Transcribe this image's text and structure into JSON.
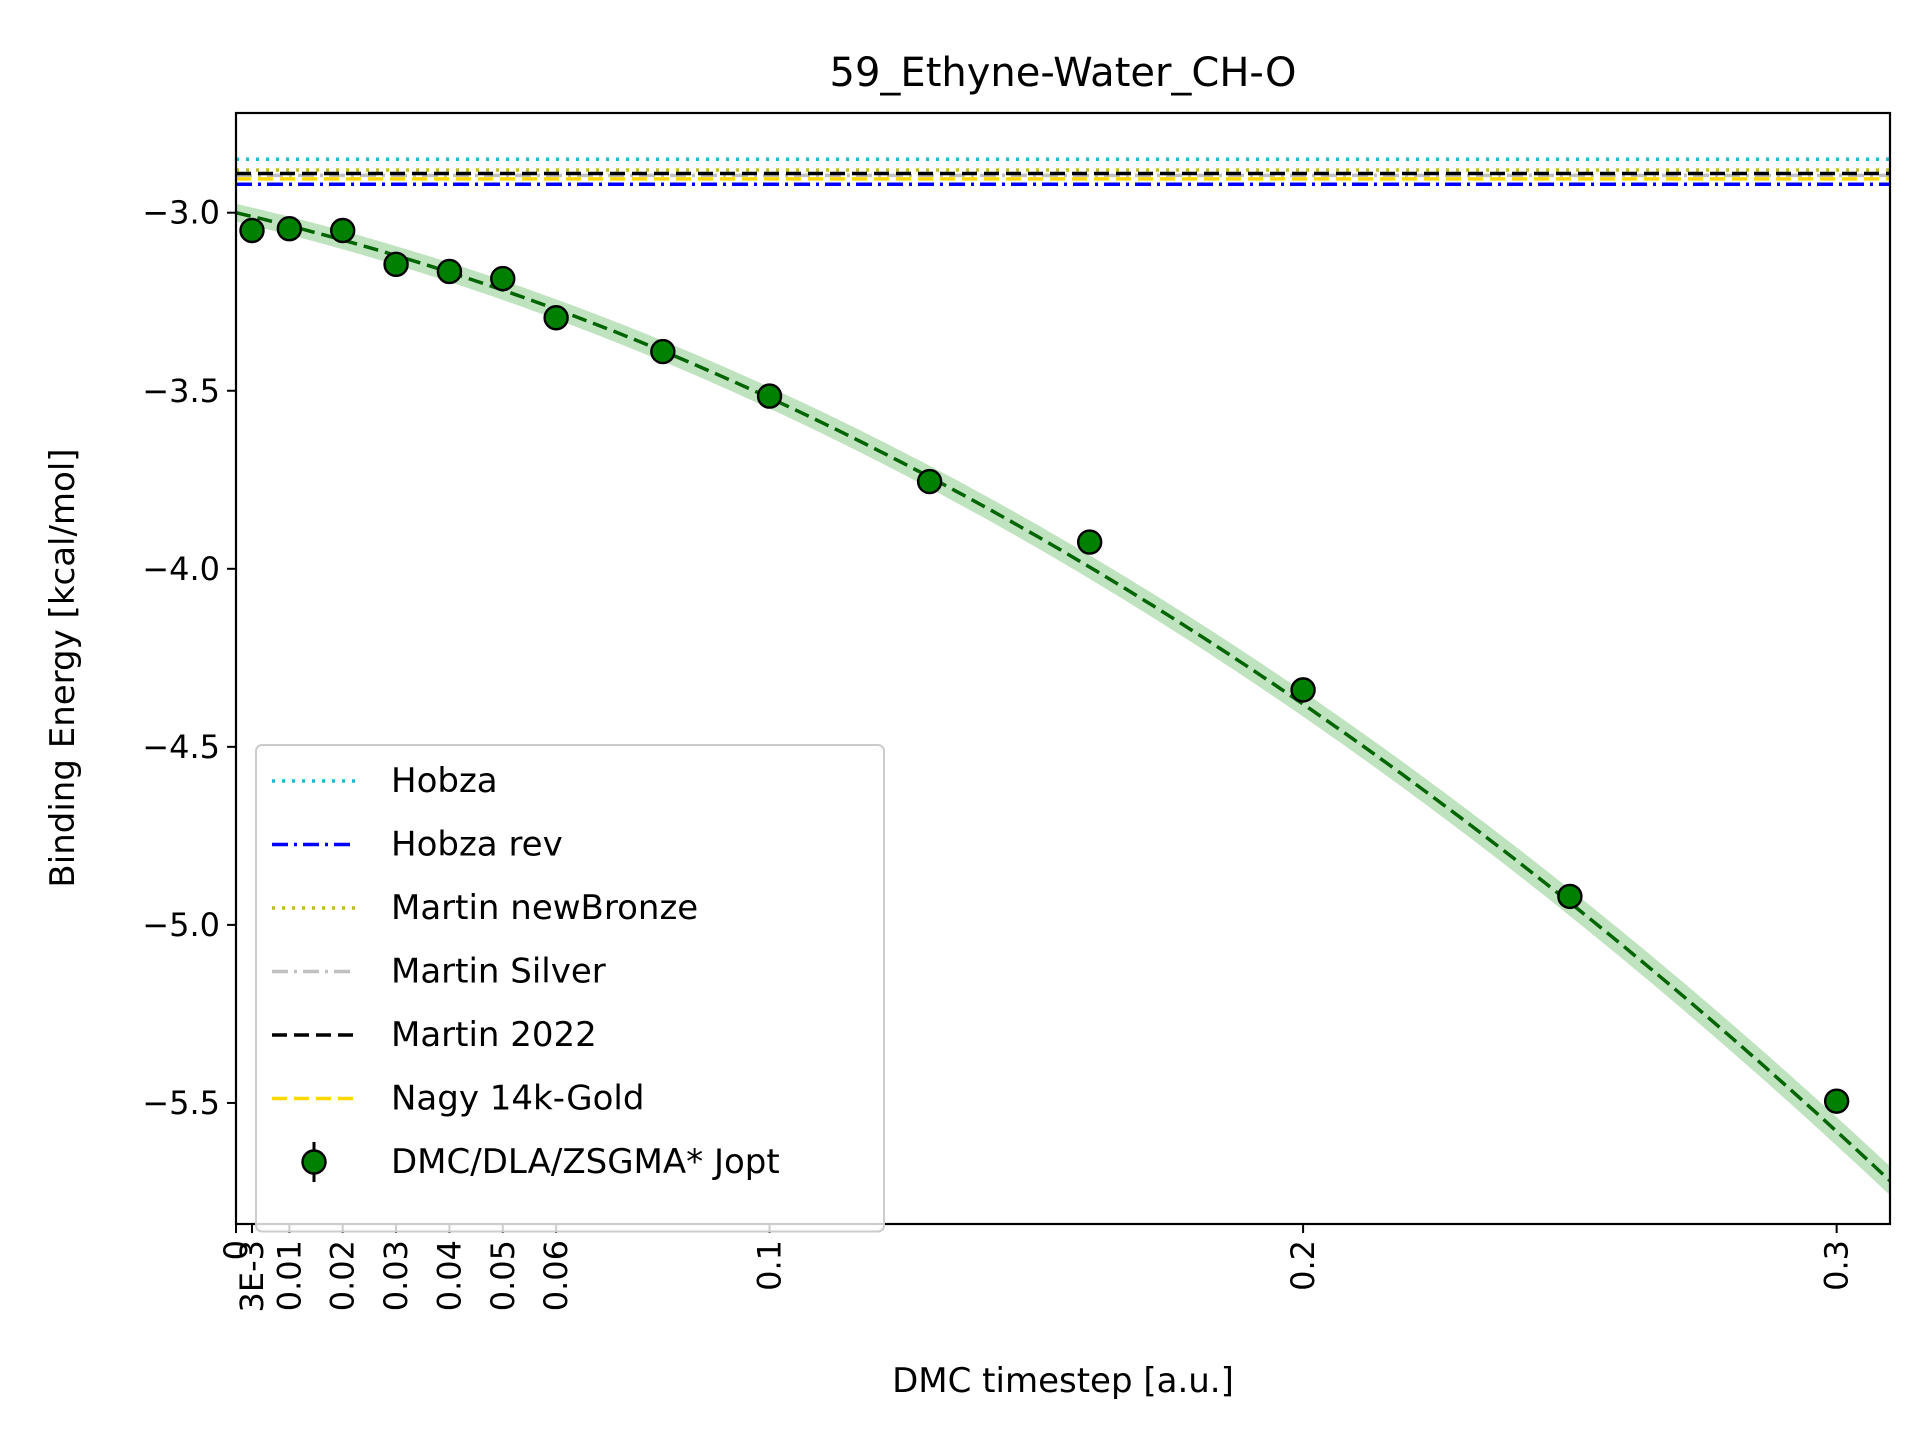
{
  "chart_data": {
    "type": "scatter",
    "title": "59_Ethyne-Water_CH-O",
    "xlabel": "DMC timestep [a.u.]",
    "ylabel": "Binding Energy [kcal/mol]",
    "xlim": [
      0,
      0.31
    ],
    "ylim": [
      -5.84,
      -2.72
    ],
    "x_ticks": [
      {
        "value": 0,
        "label": "0"
      },
      {
        "value": 0.003,
        "label": "3E-3"
      },
      {
        "value": 0.01,
        "label": "0.01"
      },
      {
        "value": 0.02,
        "label": "0.02"
      },
      {
        "value": 0.03,
        "label": "0.03"
      },
      {
        "value": 0.04,
        "label": "0.04"
      },
      {
        "value": 0.05,
        "label": "0.05"
      },
      {
        "value": 0.06,
        "label": "0.06"
      },
      {
        "value": 0.1,
        "label": "0.1"
      },
      {
        "value": 0.2,
        "label": "0.2"
      },
      {
        "value": 0.3,
        "label": "0.3"
      }
    ],
    "y_ticks": [
      {
        "value": -3.0,
        "label": "−3.0"
      },
      {
        "value": -3.5,
        "label": "−3.5"
      },
      {
        "value": -4.0,
        "label": "−4.0"
      },
      {
        "value": -4.5,
        "label": "−4.5"
      },
      {
        "value": -5.0,
        "label": "−5.0"
      },
      {
        "value": -5.5,
        "label": "−5.5"
      }
    ],
    "reference_lines": [
      {
        "name": "Hobza",
        "value": -2.85,
        "color": "#17becf",
        "style": "dotted"
      },
      {
        "name": "Hobza rev",
        "value": -2.92,
        "color": "#0000ff",
        "style": "dashdot"
      },
      {
        "name": "Martin newBronze",
        "value": -2.88,
        "color": "#bcbd22",
        "style": "dotted"
      },
      {
        "name": "Martin Silver",
        "value": -2.895,
        "color": "#c0c0c0",
        "style": "dashdot"
      },
      {
        "name": "Martin 2022",
        "value": -2.89,
        "color": "#000000",
        "style": "dashed"
      },
      {
        "name": "Nagy 14k-Gold",
        "value": -2.905,
        "color": "#ffd700",
        "style": "dashed"
      }
    ],
    "series": [
      {
        "name": "DMC/DLA/ZSGMA* Jopt",
        "color": "#008000",
        "x": [
          0.003,
          0.01,
          0.02,
          0.03,
          0.04,
          0.05,
          0.06,
          0.08,
          0.1,
          0.13,
          0.16,
          0.2,
          0.25,
          0.3
        ],
        "y": [
          -3.05,
          -3.045,
          -3.05,
          -3.145,
          -3.165,
          -3.185,
          -3.295,
          -3.39,
          -3.515,
          -3.755,
          -3.925,
          -4.34,
          -4.92,
          -5.495
        ],
        "yerr": [
          0.01,
          0.01,
          0.01,
          0.01,
          0.01,
          0.01,
          0.01,
          0.015,
          0.02,
          0.02,
          0.025,
          0.03,
          0.03,
          0.02
        ]
      }
    ],
    "fit": {
      "color": "#006400",
      "band_color": "#2ca02c",
      "coefficients": [
        -3.0,
        -3.5,
        -17.0
      ],
      "band_halfwidth": 0.025,
      "style": "dashed"
    },
    "legend": {
      "position": "lower-left",
      "entries": [
        "Hobza",
        "Hobza rev",
        "Martin newBronze",
        "Martin Silver",
        "Martin 2022",
        "Nagy 14k-Gold",
        "DMC/DLA/ZSGMA* Jopt"
      ]
    },
    "grid": false
  }
}
